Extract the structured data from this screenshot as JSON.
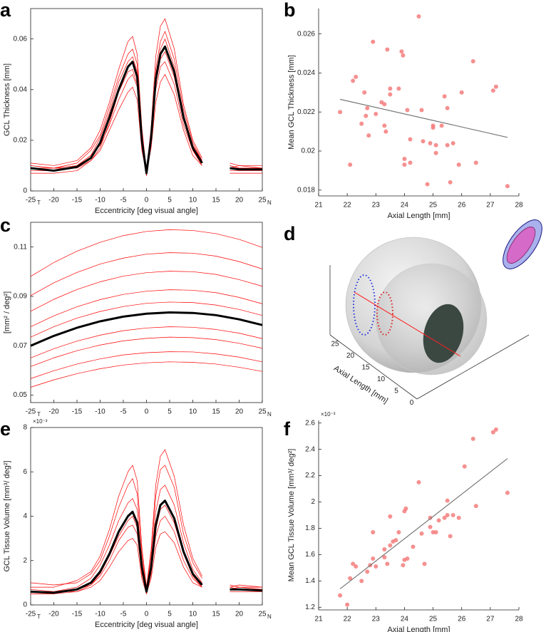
{
  "chart_data": [
    {
      "type": "line",
      "panel_label": "a",
      "xlabel": "Eccentricity [deg visual angle]",
      "ylabel": "GCL Thickness [mm]",
      "box": true,
      "x": [
        -25,
        -20,
        -15,
        -12,
        -10,
        -8,
        -6,
        -4,
        -3,
        -2,
        -1,
        0,
        1,
        2,
        3,
        4,
        6,
        8,
        10,
        12,
        15,
        18,
        20,
        25
      ],
      "xlim": [
        -25,
        25
      ],
      "xticks": [
        -25,
        -20,
        -15,
        -10,
        -5,
        0,
        5,
        10,
        15,
        20,
        25
      ],
      "x_side_labels": [
        "T",
        "N"
      ],
      "ylim": [
        0,
        0.072
      ],
      "yticks": [
        0,
        0.02,
        0.04,
        0.06
      ],
      "series": [
        {
          "color": "#ff0000",
          "values": [
            0.01,
            0.009,
            0.009,
            0.012,
            0.016,
            0.024,
            0.032,
            0.039,
            0.041,
            0.036,
            0.016,
            0.007,
            0.017,
            0.035,
            0.043,
            0.046,
            0.038,
            0.024,
            0.014,
            0.01,
            null,
            0.01,
            0.009,
            0.009
          ]
        },
        {
          "color": "#ff0000",
          "values": [
            0.008,
            0.008,
            0.01,
            0.014,
            0.018,
            0.026,
            0.036,
            0.044,
            0.046,
            0.041,
            0.018,
            0.006,
            0.019,
            0.04,
            0.049,
            0.051,
            0.042,
            0.026,
            0.016,
            0.011,
            null,
            0.008,
            0.008,
            0.008
          ]
        },
        {
          "color": "#ff0000",
          "values": [
            0.009,
            0.009,
            0.011,
            0.016,
            0.022,
            0.033,
            0.045,
            0.054,
            0.056,
            0.05,
            0.023,
            0.008,
            0.023,
            0.048,
            0.059,
            0.063,
            0.052,
            0.032,
            0.019,
            0.012,
            null,
            0.009,
            0.01,
            0.009
          ]
        },
        {
          "color": "#ff0000",
          "values": [
            0.011,
            0.01,
            0.012,
            0.017,
            0.024,
            0.035,
            0.048,
            0.059,
            0.061,
            0.054,
            0.025,
            0.008,
            0.025,
            0.053,
            0.065,
            0.068,
            0.056,
            0.034,
            0.02,
            0.013,
            null,
            0.011,
            0.01,
            0.01
          ]
        },
        {
          "color": "#ff0000",
          "values": [
            0.007,
            0.007,
            0.008,
            0.012,
            0.017,
            0.027,
            0.039,
            0.047,
            0.048,
            0.042,
            0.019,
            0.007,
            0.02,
            0.042,
            0.052,
            0.055,
            0.045,
            0.028,
            0.016,
            0.01,
            null,
            0.007,
            0.007,
            0.007
          ]
        },
        {
          "color": "#ff0000",
          "values": [
            0.01,
            0.009,
            0.01,
            0.014,
            0.021,
            0.031,
            0.043,
            0.051,
            0.053,
            0.047,
            0.021,
            0.007,
            0.022,
            0.046,
            0.056,
            0.06,
            0.049,
            0.03,
            0.018,
            0.012,
            null,
            0.01,
            0.009,
            0.009
          ]
        },
        {
          "color": "#000000",
          "values": [
            0.009,
            0.008,
            0.0095,
            0.013,
            0.019,
            0.029,
            0.04,
            0.049,
            0.051,
            0.045,
            0.02,
            0.007,
            0.021,
            0.044,
            0.054,
            0.057,
            0.047,
            0.029,
            0.017,
            0.011,
            null,
            0.009,
            0.0085,
            0.0085
          ]
        }
      ]
    },
    {
      "type": "scatter",
      "panel_label": "b",
      "xlabel": "Axial Length [mm]",
      "ylabel": "Mean GCL Thickness [mm]",
      "box": false,
      "xlim": [
        21,
        28
      ],
      "xticks": [
        21,
        22,
        23,
        24,
        25,
        26,
        27,
        28
      ],
      "ylim": [
        0.0177,
        0.0273
      ],
      "yticks": [
        0.018,
        0.02,
        0.022,
        0.024,
        0.026
      ],
      "color": "#f47c7c",
      "fit_color": "#777777",
      "points": {
        "x": [
          21.75,
          22.1,
          22.2,
          22.3,
          22.5,
          22.6,
          22.65,
          22.7,
          22.75,
          22.9,
          23.0,
          23.2,
          23.3,
          23.3,
          23.35,
          23.4,
          23.5,
          23.5,
          23.8,
          23.9,
          23.95,
          24.0,
          24.0,
          24.1,
          24.2,
          24.2,
          24.5,
          24.6,
          24.65,
          24.8,
          24.9,
          25.0,
          25.0,
          25.1,
          25.1,
          25.3,
          25.4,
          25.5,
          25.5,
          25.6,
          25.7,
          25.9,
          26.0,
          26.4,
          26.5,
          27.1,
          27.2,
          27.6
        ],
        "y": [
          0.022,
          0.0193,
          0.0236,
          0.0238,
          0.0214,
          0.023,
          0.0218,
          0.0222,
          0.0208,
          0.0256,
          0.0219,
          0.0225,
          0.0224,
          0.0213,
          0.021,
          0.0252,
          0.0229,
          0.0232,
          0.0232,
          0.0251,
          0.0249,
          0.0196,
          0.0193,
          0.0221,
          0.0194,
          0.0206,
          0.0269,
          0.0221,
          0.0205,
          0.0183,
          0.0204,
          0.0213,
          0.0212,
          0.0199,
          0.0203,
          0.0213,
          0.0228,
          0.0222,
          0.0203,
          0.0184,
          0.0204,
          0.0193,
          0.023,
          0.0246,
          0.0194,
          0.0231,
          0.0233,
          0.0182
        ]
      },
      "fit_line": {
        "x": [
          21.75,
          27.6
        ],
        "y": [
          0.02265,
          0.0207
        ]
      }
    },
    {
      "type": "line",
      "panel_label": "c",
      "ylabel": "[mm² / deg²]",
      "box": true,
      "x": [
        -25,
        -20,
        -15,
        -10,
        -5,
        0,
        5,
        10,
        15,
        20,
        25
      ],
      "xlim": [
        -25,
        25
      ],
      "xticks": [
        -25,
        -20,
        -15,
        -10,
        -5,
        0,
        5,
        10,
        15,
        20,
        25
      ],
      "x_side_labels": [
        "T",
        "N"
      ],
      "ylim": [
        0.047,
        0.12
      ],
      "yticks": [
        0.05,
        0.07,
        0.09,
        0.11
      ],
      "series": [
        {
          "color": "#ff0000",
          "values": [
            0.0981,
            0.1037,
            0.1083,
            0.1119,
            0.1146,
            0.1163,
            0.117,
            0.1167,
            0.1154,
            0.1131,
            0.1098
          ]
        },
        {
          "color": "#ff0000",
          "values": [
            0.0903,
            0.0955,
            0.0997,
            0.1031,
            0.1055,
            0.1071,
            0.1077,
            0.1075,
            0.1063,
            0.1041,
            0.1011
          ]
        },
        {
          "color": "#ff0000",
          "values": [
            0.084,
            0.0888,
            0.0928,
            0.0959,
            0.0982,
            0.0996,
            0.1002,
            0.1,
            0.0989,
            0.0968,
            0.0941
          ]
        },
        {
          "color": "#ff0000",
          "values": [
            0.0777,
            0.0821,
            0.0858,
            0.0887,
            0.0908,
            0.0921,
            0.0927,
            0.0925,
            0.0915,
            0.0896,
            0.087
          ]
        },
        {
          "color": "#ff0000",
          "values": [
            0.0735,
            0.0777,
            0.0812,
            0.0839,
            0.0859,
            0.0872,
            0.0877,
            0.0875,
            0.0865,
            0.0847,
            0.0823
          ]
        },
        {
          "color": "#ff0000",
          "values": [
            0.0651,
            0.0688,
            0.0719,
            0.0743,
            0.0761,
            0.0772,
            0.0777,
            0.0775,
            0.0766,
            0.0751,
            0.0729
          ]
        },
        {
          "color": "#ff0000",
          "values": [
            0.0616,
            0.0651,
            0.068,
            0.0703,
            0.072,
            0.073,
            0.0735,
            0.0733,
            0.0725,
            0.071,
            0.069
          ]
        },
        {
          "color": "#ff0000",
          "values": [
            0.0567,
            0.0599,
            0.0626,
            0.0647,
            0.0663,
            0.0672,
            0.0676,
            0.0675,
            0.0667,
            0.0654,
            0.0635
          ]
        },
        {
          "color": "#ff0000",
          "values": [
            0.0532,
            0.0562,
            0.0587,
            0.0607,
            0.0622,
            0.0631,
            0.0635,
            0.0633,
            0.0626,
            0.0613,
            0.0596
          ]
        },
        {
          "color": "#000000",
          "values": [
            0.07,
            0.074,
            0.0773,
            0.0799,
            0.0818,
            0.083,
            0.0835,
            0.0833,
            0.0824,
            0.0807,
            0.0784
          ]
        }
      ]
    },
    {
      "type": "line",
      "panel_label": "e",
      "xlabel": "Eccentricity [deg visual angle]",
      "ylabel": "GCL Tissue Volume [mm³/ deg²]",
      "y_multiplier": "×10⁻³",
      "box": true,
      "x": [
        -25,
        -20,
        -15,
        -12,
        -10,
        -8,
        -6,
        -4,
        -3,
        -2,
        -1,
        0,
        1,
        2,
        3,
        4,
        6,
        8,
        10,
        12,
        15,
        18,
        20,
        25
      ],
      "xlim": [
        -25,
        25
      ],
      "xticks": [
        -25,
        -20,
        -15,
        -10,
        -5,
        0,
        5,
        10,
        15,
        20,
        25
      ],
      "x_side_labels": [
        "T",
        "N"
      ],
      "ylim": [
        0,
        8
      ],
      "yticks": [
        0,
        2,
        4,
        6,
        8
      ],
      "series": [
        {
          "color": "#ff0000",
          "values": [
            0.7,
            0.6,
            0.6,
            0.8,
            1.1,
            1.7,
            2.4,
            2.9,
            3.0,
            2.7,
            1.2,
            0.5,
            1.2,
            2.6,
            3.2,
            3.3,
            2.8,
            1.7,
            1.0,
            0.8,
            null,
            0.8,
            0.7,
            0.7
          ]
        },
        {
          "color": "#ff0000",
          "values": [
            0.5,
            0.5,
            0.7,
            0.9,
            1.3,
            2.0,
            2.9,
            3.5,
            3.6,
            3.2,
            1.4,
            0.5,
            1.4,
            3.1,
            3.8,
            4.0,
            3.3,
            2.0,
            1.2,
            0.8,
            null,
            0.6,
            0.6,
            0.6
          ]
        },
        {
          "color": "#ff0000",
          "values": [
            0.6,
            0.6,
            0.8,
            1.2,
            1.8,
            2.7,
            3.8,
            4.6,
            4.8,
            4.3,
            2.0,
            0.6,
            2.0,
            4.2,
            5.2,
            5.4,
            4.5,
            2.8,
            1.6,
            1.0,
            null,
            0.7,
            0.8,
            0.7
          ]
        },
        {
          "color": "#ff0000",
          "values": [
            1.0,
            0.9,
            1.0,
            1.4,
            2.0,
            3.1,
            4.4,
            5.4,
            5.7,
            5.0,
            2.3,
            0.7,
            2.3,
            4.9,
            6.1,
            6.3,
            5.3,
            3.2,
            1.9,
            1.2,
            null,
            0.9,
            0.8,
            0.8
          ]
        },
        {
          "color": "#ff0000",
          "values": [
            0.8,
            0.8,
            1.1,
            1.5,
            2.2,
            3.4,
            4.9,
            6.0,
            6.3,
            5.6,
            2.6,
            0.8,
            2.5,
            5.4,
            6.7,
            7.0,
            5.8,
            3.6,
            2.1,
            1.3,
            null,
            0.8,
            0.9,
            0.8
          ]
        },
        {
          "color": "#ff0000",
          "values": [
            0.5,
            0.5,
            0.6,
            0.9,
            1.4,
            2.2,
            3.1,
            3.8,
            4.0,
            3.5,
            1.6,
            0.5,
            1.6,
            3.4,
            4.3,
            4.5,
            3.7,
            2.3,
            1.3,
            0.8,
            null,
            0.6,
            0.6,
            0.6
          ]
        },
        {
          "color": "#000000",
          "values": [
            0.6,
            0.55,
            0.7,
            1.0,
            1.5,
            2.3,
            3.3,
            4.0,
            4.2,
            3.7,
            1.7,
            0.6,
            1.7,
            3.6,
            4.5,
            4.7,
            3.9,
            2.4,
            1.4,
            0.9,
            null,
            0.7,
            0.7,
            0.65
          ]
        }
      ]
    },
    {
      "type": "scatter",
      "panel_label": "f",
      "xlabel": "Axial Length [mm]",
      "ylabel": "Mean GCL Tissue Volume [mm³/ deg²]",
      "y_multiplier": "×10⁻³",
      "box": false,
      "xlim": [
        21,
        28
      ],
      "xticks": [
        21,
        22,
        23,
        24,
        25,
        26,
        27,
        28
      ],
      "ylim": [
        1.18,
        2.62
      ],
      "yticks": [
        1.2,
        1.4,
        1.6,
        1.8,
        2,
        2.2,
        2.4,
        2.6
      ],
      "color": "#f47c7c",
      "fit_color": "#777777",
      "points": {
        "x": [
          21.75,
          22.0,
          22.1,
          22.2,
          22.3,
          22.5,
          22.7,
          22.8,
          22.9,
          22.9,
          23.0,
          23.3,
          23.3,
          23.4,
          23.5,
          23.5,
          23.6,
          23.7,
          23.8,
          23.95,
          24.0,
          24.0,
          24.05,
          24.1,
          24.3,
          24.5,
          24.6,
          24.7,
          24.9,
          24.9,
          25.0,
          25.1,
          25.2,
          25.4,
          25.5,
          25.5,
          25.6,
          25.7,
          25.9,
          26.1,
          26.4,
          26.5,
          27.1,
          27.2,
          27.6
        ],
        "y": [
          1.29,
          1.22,
          1.42,
          1.53,
          1.51,
          1.4,
          1.47,
          1.52,
          1.57,
          1.77,
          1.51,
          1.58,
          1.64,
          1.53,
          1.67,
          1.89,
          1.7,
          1.71,
          1.77,
          1.52,
          1.56,
          1.93,
          1.95,
          1.57,
          1.66,
          2.15,
          1.76,
          1.53,
          1.81,
          1.88,
          1.77,
          1.77,
          1.86,
          1.88,
          2.01,
          1.9,
          1.74,
          1.9,
          1.88,
          2.27,
          2.48,
          1.97,
          2.53,
          2.55,
          2.07
        ]
      },
      "fit_line": {
        "x": [
          21.75,
          27.6
        ],
        "y": [
          1.34,
          2.33
        ]
      }
    }
  ],
  "diagram": {
    "panel_label": "d",
    "axis_label": "Axial Length [mm]",
    "axis_ticks": [
      25,
      20,
      15,
      10,
      5,
      0
    ]
  }
}
